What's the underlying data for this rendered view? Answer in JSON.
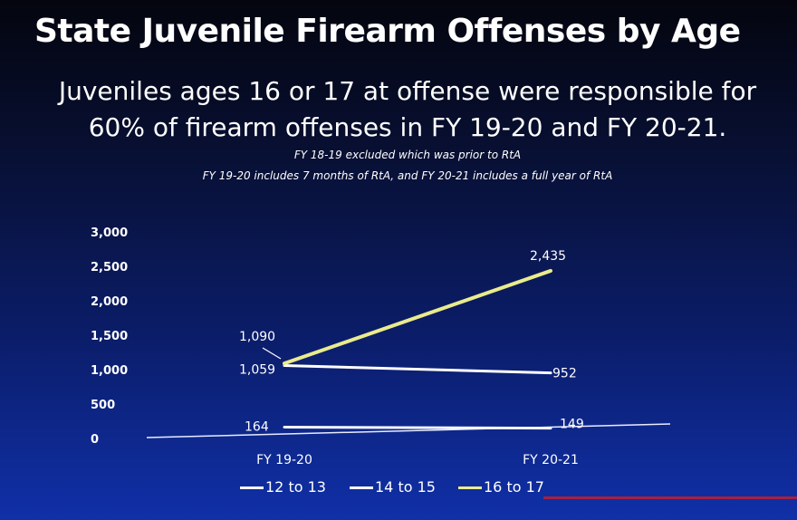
{
  "title": "State Juvenile Firearm Offenses by Age",
  "subtitle_line1": "Juveniles ages 16 or 17 at offense were responsible for",
  "subtitle_line2": "60% of firearm offenses in FY 19-20 and FY 20-21.",
  "note_line1": "FY 18-19 excluded which was prior to RtA",
  "note_line2": "FY 19-20 includes 7 months of RtA, and FY 20-21 includes a full year of RtA",
  "colors": {
    "12 to 13": "#f4f6ff",
    "14 to 15": "#ffffff",
    "16 to 17": "#eaeb8c"
  },
  "chart_data": {
    "type": "line",
    "categories": [
      "FY 19-20",
      "FY 20-21"
    ],
    "ylim": [
      0,
      3000
    ],
    "yticks": [
      0,
      500,
      1000,
      1500,
      2000,
      2500,
      3000
    ],
    "ytick_labels": [
      "0",
      "500",
      "1,000",
      "1,500",
      "2,000",
      "2,500",
      "3,000"
    ],
    "series": [
      {
        "name": "12 to 13",
        "values": [
          164,
          149
        ],
        "labels": [
          "164",
          "149"
        ]
      },
      {
        "name": "14 to 15",
        "values": [
          1059,
          952
        ],
        "labels": [
          "1,059",
          "952"
        ]
      },
      {
        "name": "16 to 17",
        "values": [
          1090,
          2435
        ],
        "labels": [
          "1,090",
          "2,435"
        ]
      }
    ],
    "legend_position": "bottom"
  }
}
